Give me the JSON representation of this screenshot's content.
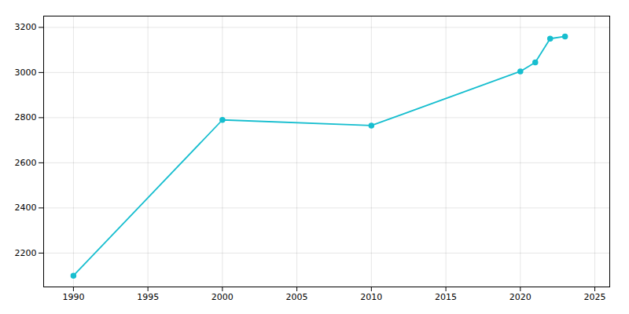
{
  "chart_data": {
    "type": "line",
    "x": [
      1990,
      2000,
      2010,
      2020,
      2021,
      2022,
      2023
    ],
    "values": [
      2100,
      2790,
      2765,
      3005,
      3045,
      3150,
      3160
    ],
    "color": "#17becf",
    "marker": "circle",
    "xlim": [
      1988,
      2026
    ],
    "ylim": [
      2050,
      3250
    ],
    "xticks": [
      1990,
      1995,
      2000,
      2005,
      2010,
      2015,
      2020,
      2025
    ],
    "yticks": [
      2200,
      2400,
      2600,
      2800,
      3000,
      3200
    ],
    "grid": true
  }
}
